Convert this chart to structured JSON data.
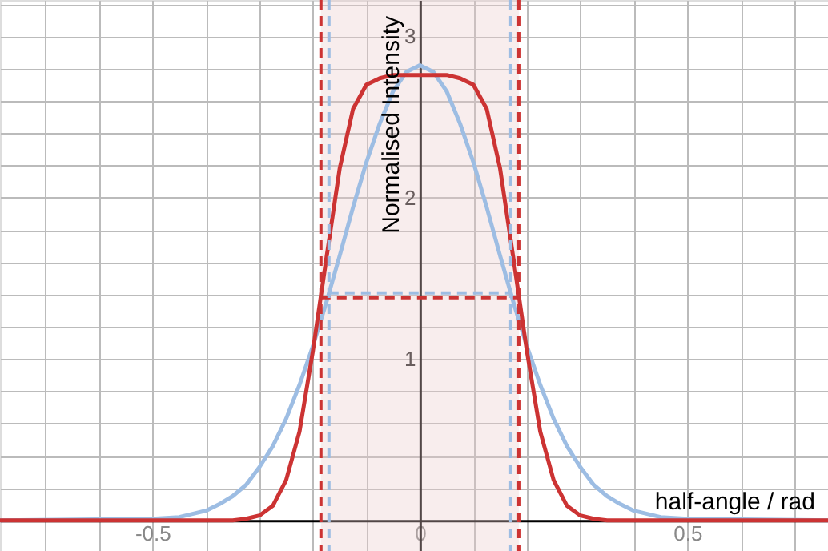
{
  "chart_data": {
    "type": "line",
    "xlabel": "half-angle / rad",
    "ylabel": "Normalised Intensity",
    "xlim": [
      -0.785,
      0.763
    ],
    "ylim": [
      -0.19,
      3.225
    ],
    "xticks": [
      {
        "value": -0.7,
        "label": null
      },
      {
        "value": -0.6,
        "label": null
      },
      {
        "value": -0.5,
        "label": "-0.5"
      },
      {
        "value": -0.4,
        "label": null
      },
      {
        "value": -0.3,
        "label": null
      },
      {
        "value": -0.2,
        "label": null
      },
      {
        "value": -0.1,
        "label": null
      },
      0,
      {
        "value": 0.1,
        "label": null
      },
      {
        "value": 0.2,
        "label": null
      },
      {
        "value": 0.3,
        "label": null
      },
      {
        "value": 0.4,
        "label": null
      },
      0.5,
      {
        "value": 0.6,
        "label": null
      },
      {
        "value": 0.7,
        "label": null
      }
    ],
    "yticks": [
      {
        "value": 0,
        "label": null
      },
      {
        "value": 0.2,
        "label": null
      },
      {
        "value": 0.4,
        "label": null
      },
      {
        "value": 0.6,
        "label": null
      },
      {
        "value": 0.8,
        "label": null
      },
      1,
      {
        "value": 1.2,
        "label": null
      },
      {
        "value": 1.4,
        "label": null
      },
      {
        "value": 1.6,
        "label": null
      },
      {
        "value": 1.8,
        "label": null
      },
      2,
      {
        "value": 2.2,
        "label": null
      },
      {
        "value": 2.4,
        "label": null
      },
      {
        "value": 2.6,
        "label": null
      },
      {
        "value": 2.8,
        "label": null
      },
      3,
      {
        "value": 3.2,
        "label": null
      }
    ],
    "grid": true,
    "marker": "none",
    "bands": [
      {
        "axis": "x",
        "from": -0.185,
        "to": 0.185,
        "color": "#eccccc"
      }
    ],
    "ref_lines": [
      {
        "axis": "x",
        "value": -0.185,
        "color": "#cc3333",
        "line_style": "dashed"
      },
      {
        "axis": "x",
        "value": 0.185,
        "color": "#cc3333",
        "line_style": "dashed"
      },
      {
        "axis": "x",
        "value": -0.17,
        "color": "#9dbde3",
        "line_style": "dashed"
      },
      {
        "axis": "x",
        "value": 0.17,
        "color": "#9dbde3",
        "line_style": "dashed"
      }
    ],
    "series": [
      {
        "color": "#9dbde3",
        "line_style": "solid",
        "x": [
          -0.785,
          -0.5,
          -0.45,
          -0.425,
          -0.4,
          -0.375,
          -0.35,
          -0.325,
          -0.3,
          -0.275,
          -0.25,
          -0.225,
          -0.2,
          -0.175,
          -0.15,
          -0.125,
          -0.1,
          -0.075,
          -0.05,
          -0.025,
          0,
          0.025,
          0.05,
          0.075,
          0.1,
          0.125,
          0.15,
          0.175,
          0.2,
          0.225,
          0.25,
          0.275,
          0.3,
          0.325,
          0.35,
          0.375,
          0.4,
          0.425,
          0.45,
          0.5,
          0.763
        ],
        "values": [
          0,
          0.01,
          0.02,
          0.04,
          0.06,
          0.1,
          0.15,
          0.22,
          0.33,
          0.46,
          0.63,
          0.84,
          1.08,
          1.35,
          1.64,
          1.94,
          2.22,
          2.46,
          2.66,
          2.78,
          2.82,
          2.78,
          2.66,
          2.46,
          2.22,
          1.94,
          1.64,
          1.35,
          1.08,
          0.84,
          0.63,
          0.46,
          0.33,
          0.22,
          0.15,
          0.1,
          0.06,
          0.04,
          0.02,
          0.01,
          0
        ]
      },
      {
        "color": "#cc3333",
        "line_style": "solid",
        "x": [
          -0.785,
          -0.35,
          -0.325,
          -0.3,
          -0.275,
          -0.25,
          -0.225,
          -0.2,
          -0.175,
          -0.15,
          -0.125,
          -0.1,
          -0.075,
          -0.05,
          -0.025,
          0,
          0.025,
          0.05,
          0.075,
          0.1,
          0.125,
          0.15,
          0.175,
          0.2,
          0.225,
          0.25,
          0.275,
          0.3,
          0.325,
          0.35,
          0.763
        ],
        "values": [
          0,
          0,
          0.01,
          0.03,
          0.09,
          0.25,
          0.55,
          1.05,
          1.62,
          2.18,
          2.55,
          2.7,
          2.74,
          2.76,
          2.76,
          2.76,
          2.76,
          2.76,
          2.74,
          2.7,
          2.55,
          2.18,
          1.62,
          1.05,
          0.55,
          0.25,
          0.09,
          0.03,
          0.01,
          0,
          0
        ]
      },
      {
        "color": "#9dbde3",
        "line_style": "dashed",
        "x": [
          -0.17,
          0.17
        ],
        "values": [
          1.41,
          1.41
        ]
      },
      {
        "color": "#cc3333",
        "line_style": "dashed",
        "x": [
          -0.185,
          0.185
        ],
        "values": [
          1.38,
          1.38
        ]
      }
    ]
  }
}
